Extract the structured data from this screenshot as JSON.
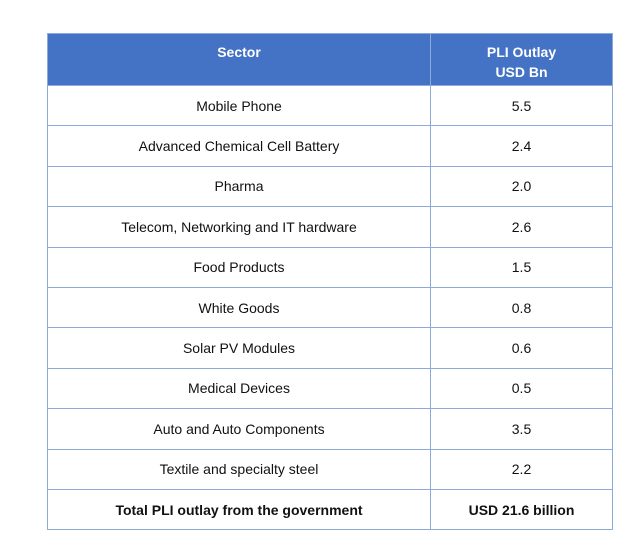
{
  "header": {
    "sector": "Sector",
    "outlay_line1": "PLI Outlay",
    "outlay_line2": "USD Bn"
  },
  "rows": [
    {
      "sector": "Mobile Phone",
      "outlay": "5.5"
    },
    {
      "sector": "Advanced Chemical Cell Battery",
      "outlay": "2.4"
    },
    {
      "sector": "Pharma",
      "outlay": "2.0"
    },
    {
      "sector": "Telecom, Networking and IT hardware",
      "outlay": "2.6"
    },
    {
      "sector": "Food Products",
      "outlay": "1.5"
    },
    {
      "sector": "White Goods",
      "outlay": "0.8"
    },
    {
      "sector": "Solar PV Modules",
      "outlay": "0.6"
    },
    {
      "sector": "Medical Devices",
      "outlay": "0.5"
    },
    {
      "sector": "Auto and Auto Components",
      "outlay": "3.5"
    },
    {
      "sector": "Textile and specialty steel",
      "outlay": "2.2"
    }
  ],
  "total": {
    "label": "Total PLI outlay from the government",
    "value": "USD 21.6 billion"
  },
  "colors": {
    "header_bg": "#4472c4",
    "border": "#8eaadb"
  }
}
